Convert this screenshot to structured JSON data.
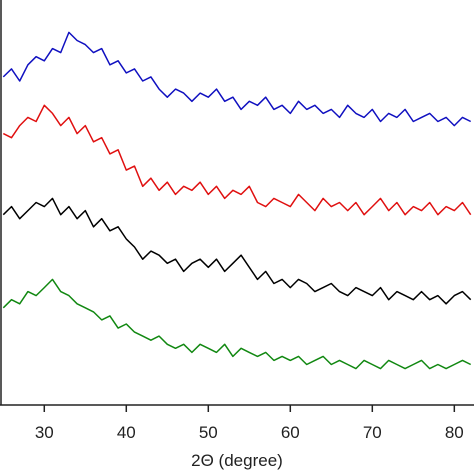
{
  "chart_data": {
    "type": "line",
    "x_label": "2Θ (degree)",
    "x": [
      25,
      26,
      27,
      28,
      29,
      30,
      31,
      32,
      33,
      34,
      35,
      36,
      37,
      38,
      39,
      40,
      41,
      42,
      43,
      44,
      45,
      46,
      47,
      48,
      49,
      50,
      51,
      52,
      53,
      54,
      55,
      56,
      57,
      58,
      59,
      60,
      61,
      62,
      63,
      64,
      65,
      66,
      67,
      68,
      69,
      70,
      71,
      72,
      73,
      74,
      75,
      76,
      77,
      78,
      79,
      80,
      81,
      82
    ],
    "series": [
      {
        "color": "#1010c0",
        "values": [
          81,
          83,
          80,
          84,
          86,
          85,
          88,
          87,
          92,
          90,
          89,
          87,
          88,
          84,
          85,
          82,
          83,
          80,
          81,
          78,
          76,
          78,
          77,
          75,
          77,
          76,
          78,
          75,
          76,
          73,
          75,
          74,
          76,
          73,
          74,
          72,
          75,
          73,
          74,
          72,
          73,
          71,
          74,
          72,
          71,
          73,
          70,
          72,
          71,
          73,
          70,
          71,
          72,
          70,
          71,
          69,
          71,
          70
        ]
      },
      {
        "color": "#e01010",
        "values": [
          67,
          66,
          69,
          71,
          70,
          74,
          72,
          69,
          71,
          67,
          69,
          65,
          66,
          62,
          63,
          58,
          59,
          54,
          56,
          53,
          55,
          52,
          54,
          53,
          55,
          52,
          54,
          51,
          53,
          52,
          54,
          50,
          49,
          51,
          50,
          49,
          52,
          50,
          48,
          51,
          49,
          50,
          48,
          50,
          47,
          49,
          51,
          48,
          50,
          47,
          49,
          48,
          50,
          47,
          49,
          48,
          50,
          47
        ]
      },
      {
        "color": "#000000",
        "values": [
          47,
          49,
          46,
          48,
          50,
          49,
          51,
          47,
          49,
          46,
          48,
          44,
          46,
          43,
          44,
          41,
          39,
          36,
          38,
          37,
          35,
          36,
          33,
          35,
          36,
          34,
          36,
          33,
          35,
          37,
          34,
          31,
          33,
          30,
          31,
          29,
          31,
          30,
          28,
          29,
          30,
          28,
          27,
          29,
          28,
          27,
          29,
          26,
          28,
          27,
          26,
          28,
          26,
          27,
          25,
          27,
          28,
          26
        ]
      },
      {
        "color": "#118811",
        "values": [
          24,
          26,
          25,
          28,
          27,
          29,
          31,
          28,
          27,
          25,
          24,
          23,
          21,
          22,
          19,
          20,
          18,
          17,
          16,
          17,
          15,
          14,
          15,
          13,
          15,
          14,
          13,
          15,
          12,
          14,
          13,
          12,
          13,
          11,
          12,
          11,
          12,
          10,
          11,
          12,
          10,
          11,
          10,
          9,
          11,
          10,
          9,
          11,
          10,
          9,
          10,
          11,
          9,
          10,
          9,
          10,
          11,
          10
        ]
      }
    ],
    "xlim": [
      24.6,
      82.4
    ],
    "xticks": [
      30,
      40,
      50,
      60,
      70,
      80
    ],
    "ylim": [
      0,
      100
    ]
  }
}
